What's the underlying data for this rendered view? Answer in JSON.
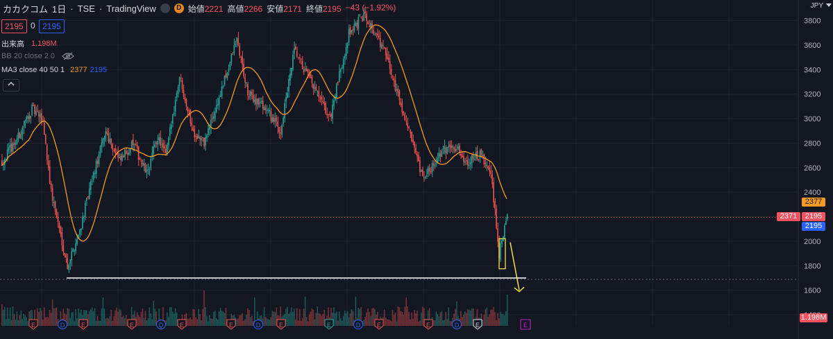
{
  "header": {
    "symbol": "カカクコム",
    "interval": "1日",
    "exchange": "TSE",
    "source": "TradingView",
    "badge_letter": "D",
    "ohlc": [
      {
        "label": "始値",
        "value": "2221"
      },
      {
        "label": "高値",
        "value": "2266"
      },
      {
        "label": "安値",
        "value": "2171"
      },
      {
        "label": "終値",
        "value": "2195"
      }
    ],
    "change": "−43 (−1.92%)"
  },
  "price_boxes": {
    "sell": "2195",
    "spread": "0",
    "buy": "2195"
  },
  "indicators": {
    "volume_label": "出来高",
    "volume_value": "1.198M",
    "bb_label": "BB 20 close 2 0",
    "ma_label": "MA3 close 40 50 1",
    "ma_value1": "2377",
    "ma_value2": "2195"
  },
  "axis": {
    "currency": "JPY",
    "ticks": [
      "3800",
      "3600",
      "3400",
      "3200",
      "3000",
      "2800",
      "2600",
      "2400",
      "2200",
      "2000",
      "1800",
      "1600",
      "1400"
    ],
    "tags": {
      "ma": "2377",
      "cross": "2371",
      "price_red": "2195",
      "price_blue": "2195",
      "volume": "1.198M"
    }
  },
  "colors": {
    "bg": "#131722",
    "up": "#26a69a",
    "down": "#ef5350",
    "ma": "#f59b23",
    "blue": "#2962ff",
    "annot": "#f2e14c"
  },
  "chart_data": {
    "type": "candlestick",
    "ylim": [
      1400,
      3860
    ],
    "support_level": 1700,
    "current_price": 2195,
    "ma_last": 2377,
    "anchors": [
      [
        0,
        2650
      ],
      [
        12,
        2850
      ],
      [
        22,
        3080
      ],
      [
        30,
        2980
      ],
      [
        36,
        2400
      ],
      [
        42,
        2100
      ],
      [
        48,
        1800
      ],
      [
        56,
        2050
      ],
      [
        66,
        2500
      ],
      [
        76,
        2900
      ],
      [
        86,
        2650
      ],
      [
        96,
        2800
      ],
      [
        106,
        2550
      ],
      [
        114,
        2850
      ],
      [
        120,
        2700
      ],
      [
        130,
        3350
      ],
      [
        140,
        2900
      ],
      [
        148,
        2800
      ],
      [
        160,
        3200
      ],
      [
        172,
        3650
      ],
      [
        180,
        3200
      ],
      [
        192,
        3100
      ],
      [
        204,
        2900
      ],
      [
        214,
        3550
      ],
      [
        226,
        3300
      ],
      [
        240,
        3000
      ],
      [
        254,
        3700
      ],
      [
        266,
        3850
      ],
      [
        280,
        3550
      ],
      [
        294,
        3050
      ],
      [
        308,
        2500
      ],
      [
        320,
        2700
      ],
      [
        330,
        2800
      ],
      [
        340,
        2650
      ],
      [
        350,
        2700
      ],
      [
        358,
        2550
      ],
      [
        364,
        1900
      ],
      [
        370,
        2200
      ]
    ],
    "events": [
      {
        "type": "E",
        "x": 48
      },
      {
        "type": "D",
        "x": 90
      },
      {
        "type": "E",
        "x": 120
      },
      {
        "type": "E",
        "x": 190
      },
      {
        "type": "D",
        "x": 232
      },
      {
        "type": "E",
        "x": 262
      },
      {
        "type": "E",
        "x": 333
      },
      {
        "type": "D",
        "x": 372
      },
      {
        "type": "E",
        "x": 405
      },
      {
        "type": "E",
        "x": 474
      },
      {
        "type": "D",
        "x": 516
      },
      {
        "type": "E",
        "x": 546
      },
      {
        "type": "E",
        "x": 617
      },
      {
        "type": "D",
        "x": 658
      },
      {
        "type": "E",
        "x": 688
      },
      {
        "type": "E",
        "x": 757
      }
    ]
  }
}
